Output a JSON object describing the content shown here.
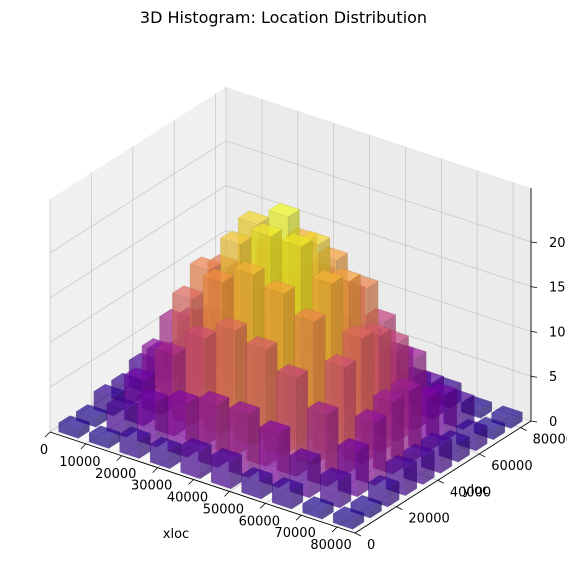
{
  "chart_data": {
    "type": "bar3d",
    "title": "3D Histogram: Location Distribution",
    "xlabel": "xloc",
    "ylabel": "yloc",
    "zlabel": "",
    "xlim": [
      0,
      85000
    ],
    "ylim": [
      0,
      85000
    ],
    "zlim": [
      0,
      24
    ],
    "x_ticks": [
      "0",
      "10000",
      "20000",
      "30000",
      "40000",
      "50000",
      "60000",
      "70000",
      "80000"
    ],
    "y_ticks": [
      "0",
      "20000",
      "40000",
      "60000",
      "80000"
    ],
    "z_ticks": [
      "0",
      "5",
      "10",
      "15",
      "20"
    ],
    "grid": true,
    "colormap": "plasma",
    "bar_alpha": 0.55,
    "bin_width": 8500,
    "bin_x_centers": [
      4250,
      12750,
      21250,
      29750,
      38250,
      46750,
      55250,
      63750,
      72250,
      80750
    ],
    "bin_y_centers": [
      4250,
      12750,
      21250,
      29750,
      38250,
      46750,
      55250,
      63750,
      72250,
      80750
    ],
    "counts": [
      [
        1,
        1,
        2,
        2,
        3,
        3,
        2,
        2,
        1,
        1
      ],
      [
        1,
        3,
        5,
        7,
        9,
        8,
        7,
        5,
        3,
        2
      ],
      [
        2,
        5,
        9,
        14,
        16,
        15,
        13,
        9,
        5,
        2
      ],
      [
        2,
        6,
        12,
        17,
        20,
        21,
        17,
        12,
        6,
        3
      ],
      [
        3,
        7,
        14,
        19,
        22,
        23,
        19,
        14,
        7,
        3
      ],
      [
        3,
        7,
        13,
        18,
        22,
        21,
        18,
        13,
        7,
        3
      ],
      [
        2,
        6,
        11,
        16,
        19,
        18,
        16,
        11,
        6,
        2
      ],
      [
        2,
        4,
        8,
        12,
        14,
        13,
        11,
        8,
        4,
        2
      ],
      [
        1,
        3,
        5,
        7,
        8,
        8,
        6,
        5,
        3,
        1
      ],
      [
        1,
        1,
        2,
        3,
        3,
        3,
        2,
        2,
        1,
        1
      ]
    ]
  }
}
